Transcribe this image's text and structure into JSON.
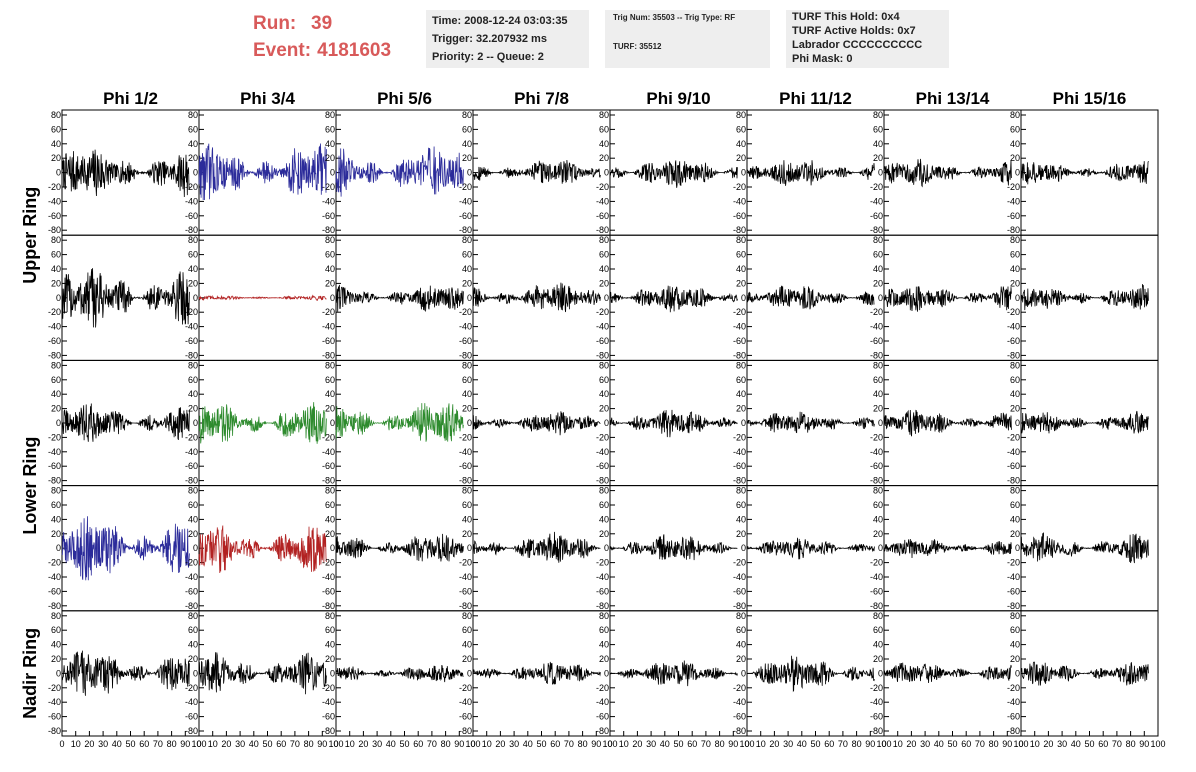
{
  "run": {
    "run_label": "Run:",
    "run_value": "39",
    "event_label": "Event:",
    "event_value": "4181603"
  },
  "info_time": {
    "time": "Time: 2008-12-24 03:03:35",
    "trigger": "Trigger: 32.207932 ms",
    "priority": "Priority: 2 -- Queue: 2"
  },
  "info_trig": {
    "trig": "Trig Num: 35503 -- Trig Type: RF",
    "turf": "TURF: 35512"
  },
  "info_turf": {
    "hold": "TURF This Hold: 0x4",
    "active": "TURF Active Holds: 0x7",
    "labrador": "Labrador CCCCCCCCCC",
    "phimask": "Phi Mask: 0"
  },
  "chart_data": {
    "type": "line",
    "columns": [
      "Phi 1/2",
      "Phi 3/4",
      "Phi 5/6",
      "Phi 7/8",
      "Phi 9/10",
      "Phi 11/12",
      "Phi 13/14",
      "Phi 15/16"
    ],
    "ring_labels": [
      "Upper Ring",
      "Lower Ring",
      "Nadir Ring"
    ],
    "ylim": [
      -80,
      80
    ],
    "yticks": [
      -80,
      -60,
      -40,
      -20,
      0,
      20,
      40,
      60,
      80
    ],
    "xlim": [
      0,
      100
    ],
    "xticks": [
      0,
      10,
      20,
      30,
      40,
      50,
      60,
      70,
      80,
      90,
      100
    ],
    "trace_colors": {
      "black": "#000000",
      "blue": "#2b2b9a",
      "red": "#b22222",
      "green": "#2e8b2e"
    },
    "rows": [
      {
        "traces": [
          {
            "color": "black",
            "amp": 22,
            "end": 93
          },
          {
            "color": "blue",
            "amp": 25,
            "end": 93
          },
          {
            "color": "blue",
            "amp": 22,
            "end": 93
          },
          {
            "color": "black",
            "amp": 11,
            "end": 93
          },
          {
            "color": "black",
            "amp": 13,
            "end": 93
          },
          {
            "color": "black",
            "amp": 12,
            "end": 93
          },
          {
            "color": "black",
            "amp": 12,
            "end": 93
          },
          {
            "color": "black",
            "amp": 10,
            "end": 93
          }
        ]
      },
      {
        "traces": [
          {
            "color": "black",
            "amp": 26,
            "end": 93
          },
          {
            "color": "red",
            "amp": 2,
            "end": 93
          },
          {
            "color": "black",
            "amp": 12,
            "end": 93
          },
          {
            "color": "black",
            "amp": 13,
            "end": 93
          },
          {
            "color": "black",
            "amp": 12,
            "end": 93
          },
          {
            "color": "black",
            "amp": 11,
            "end": 93
          },
          {
            "color": "black",
            "amp": 12,
            "end": 93
          },
          {
            "color": "black",
            "amp": 11,
            "end": 93
          }
        ]
      },
      {
        "traces": [
          {
            "color": "black",
            "amp": 17,
            "end": 93
          },
          {
            "color": "green",
            "amp": 18,
            "end": 93
          },
          {
            "color": "green",
            "amp": 18,
            "end": 93
          },
          {
            "color": "black",
            "amp": 10,
            "end": 93
          },
          {
            "color": "black",
            "amp": 12,
            "end": 93
          },
          {
            "color": "black",
            "amp": 10,
            "end": 93
          },
          {
            "color": "black",
            "amp": 11,
            "end": 93
          },
          {
            "color": "black",
            "amp": 10,
            "end": 93
          }
        ]
      },
      {
        "traces": [
          {
            "color": "blue",
            "amp": 28,
            "end": 93
          },
          {
            "color": "red",
            "amp": 22,
            "end": 93
          },
          {
            "color": "black",
            "amp": 13,
            "end": 93
          },
          {
            "color": "black",
            "amp": 13,
            "end": 93
          },
          {
            "color": "black",
            "amp": 12,
            "end": 93
          },
          {
            "color": "black",
            "amp": 9,
            "end": 93
          },
          {
            "color": "black",
            "amp": 9,
            "end": 93
          },
          {
            "color": "black",
            "amp": 13,
            "end": 93
          }
        ]
      },
      {
        "traces": [
          {
            "color": "black",
            "amp": 21,
            "end": 93
          },
          {
            "color": "black",
            "amp": 18,
            "end": 93
          },
          {
            "color": "black",
            "amp": 8,
            "end": 93
          },
          {
            "color": "black",
            "amp": 10,
            "end": 93
          },
          {
            "color": "black",
            "amp": 11,
            "end": 93
          },
          {
            "color": "black",
            "amp": 15,
            "end": 93
          },
          {
            "color": "black",
            "amp": 10,
            "end": 93
          },
          {
            "color": "black",
            "amp": 11,
            "end": 93
          }
        ]
      }
    ]
  }
}
